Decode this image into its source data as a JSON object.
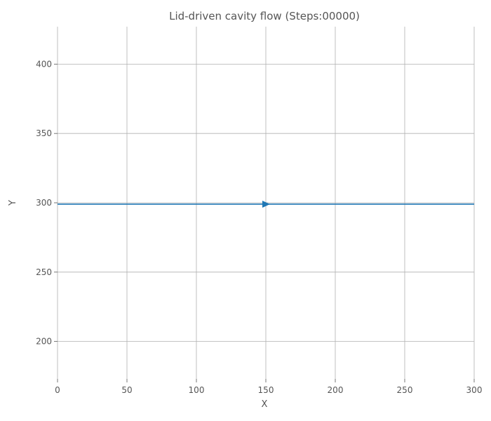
{
  "chart_data": {
    "type": "line",
    "title": "Lid-driven cavity flow (Steps:00000)",
    "xlabel": "X",
    "ylabel": "Y",
    "xlim": [
      0,
      300
    ],
    "ylim": [
      173,
      427
    ],
    "xticks": [
      0,
      50,
      100,
      150,
      200,
      250,
      300
    ],
    "yticks": [
      200,
      250,
      300,
      350,
      400
    ],
    "grid": true,
    "series": [
      {
        "x": [
          0,
          300
        ],
        "y": [
          299,
          299
        ],
        "color": "#1f77b4",
        "arrow": {
          "x": 150,
          "y": 299,
          "direction": "right"
        }
      }
    ]
  }
}
